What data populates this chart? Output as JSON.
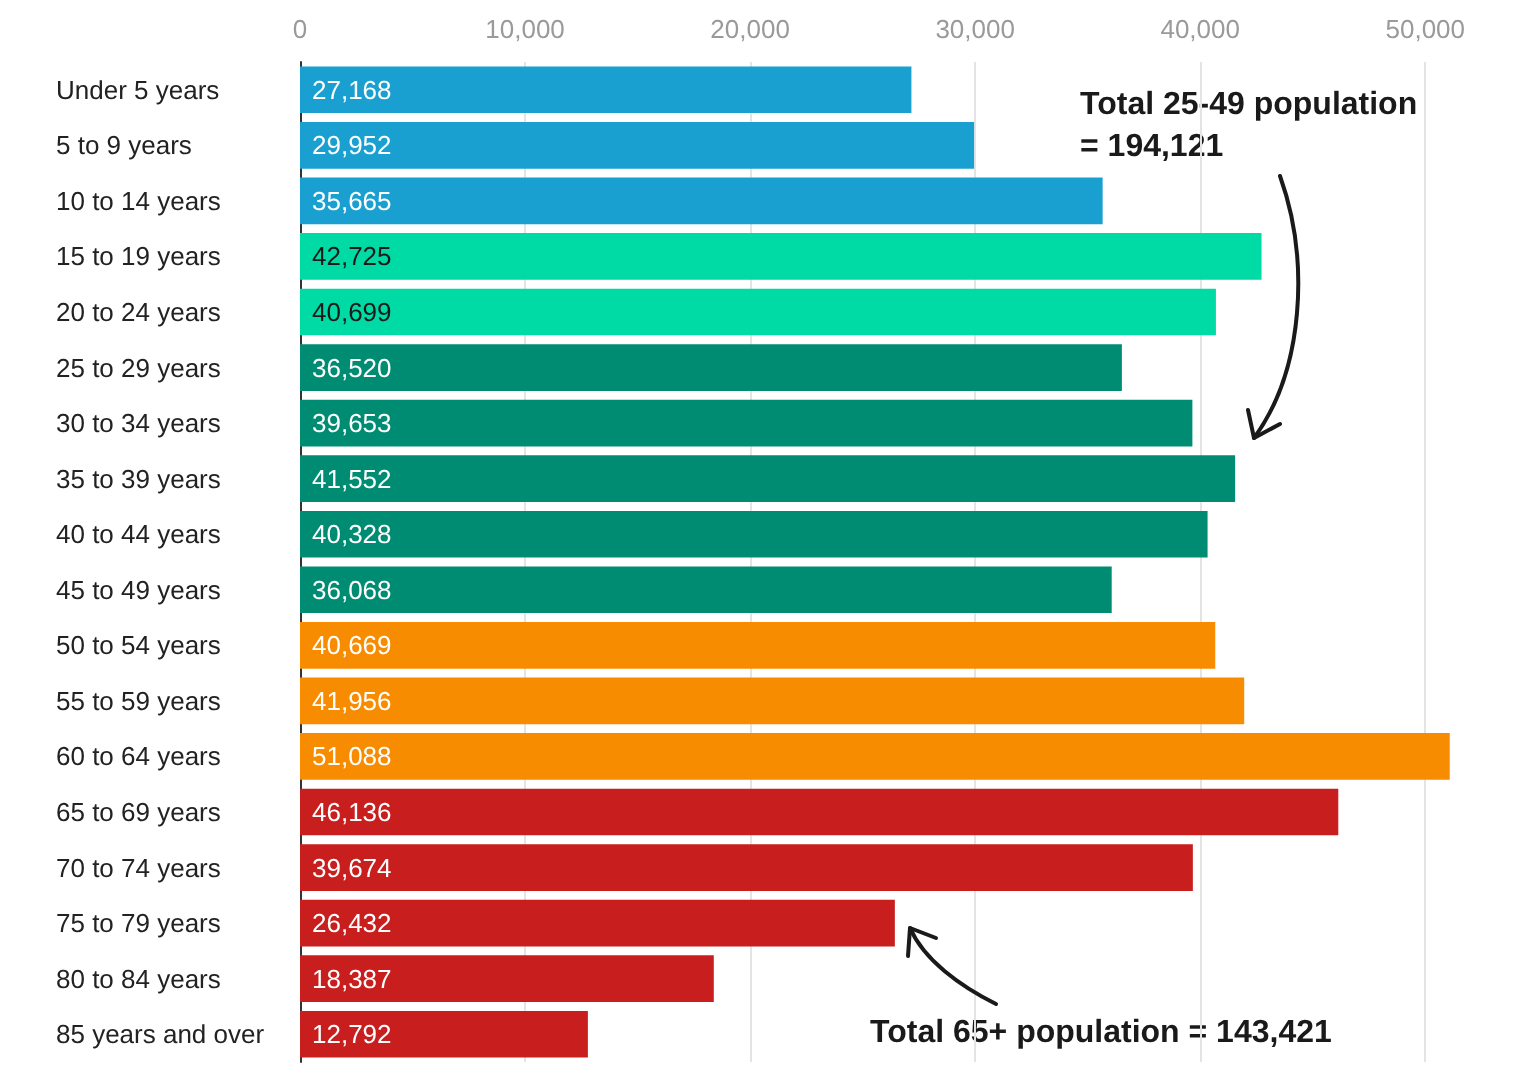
{
  "chart_data": {
    "type": "bar",
    "orientation": "horizontal",
    "categories": [
      "Under 5 years",
      "5 to 9 years",
      "10 to 14 years",
      "15 to 19 years",
      "20 to 24 years",
      "25 to 29 years",
      "30 to 34 years",
      "35 to 39 years",
      "40 to 44 years",
      "45 to 49 years",
      "50 to 54 years",
      "55 to 59 years",
      "60 to 64 years",
      "65 to 69 years",
      "70 to 74 years",
      "75 to 79 years",
      "80 to 84 years",
      "85 years and over"
    ],
    "values": [
      27168,
      29952,
      35665,
      42725,
      40699,
      36520,
      39653,
      41552,
      40328,
      36068,
      40669,
      41956,
      51088,
      46136,
      39674,
      26432,
      18387,
      12792
    ],
    "colors": [
      "#1aa0d0",
      "#1aa0d0",
      "#1aa0d0",
      "#00dba6",
      "#00dba6",
      "#008c72",
      "#008c72",
      "#008c72",
      "#008c72",
      "#008c72",
      "#f88c00",
      "#f88c00",
      "#f88c00",
      "#c81e1e",
      "#c81e1e",
      "#c81e1e",
      "#c81e1e",
      "#c81e1e"
    ],
    "xlim": [
      0,
      51100
    ],
    "xticks": [
      {
        "value": 0,
        "label": "0"
      },
      {
        "value": 10000,
        "label": "10,000"
      },
      {
        "value": 20000,
        "label": "20,000"
      },
      {
        "value": 30000,
        "label": "30,000"
      },
      {
        "value": 40000,
        "label": "40,000"
      },
      {
        "value": 50000,
        "label": "50,000"
      }
    ],
    "grid": "x",
    "value_labels": [
      "27,168",
      "29,952",
      "35,665",
      "42,725",
      "40,699",
      "36,520",
      "39,653",
      "41,552",
      "40,328",
      "36,068",
      "40,669",
      "41,956",
      "51,088",
      "46,136",
      "39,674",
      "26,432",
      "18,387",
      "12,792"
    ],
    "annotations": [
      "Total 25-49 population\n= 194,121",
      "Total 65+ population = 143,421"
    ]
  }
}
